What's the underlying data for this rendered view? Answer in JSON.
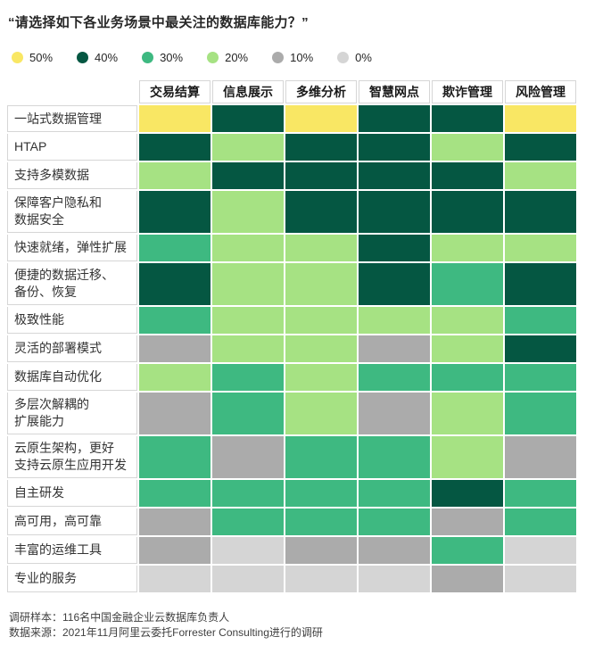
{
  "title": "“请选择如下各业务场景中最关注的数据库能力？”",
  "legend": {
    "items": [
      {
        "label": "50%",
        "color": "#F9E764"
      },
      {
        "label": "40%",
        "color": "#055742"
      },
      {
        "label": "30%",
        "color": "#3EB981"
      },
      {
        "label": "20%",
        "color": "#A6E283"
      },
      {
        "label": "10%",
        "color": "#ABABAB"
      },
      {
        "label": "0%",
        "color": "#D5D5D5"
      }
    ]
  },
  "chart_data": {
    "type": "heatmap",
    "title": "请选择如下各业务场景中最关注的数据库能力？",
    "legend_position": "top",
    "value_unit": "percent",
    "palette": {
      "50": "#F9E764",
      "40": "#055742",
      "30": "#3EB981",
      "20": "#A6E283",
      "10": "#ABABAB",
      "0": "#D5D5D5"
    },
    "columns": [
      "交易结算",
      "信息展示",
      "多维分析",
      "智慧网点",
      "欺诈管理",
      "风险管理"
    ],
    "rows": [
      {
        "label": "一站式数据管理",
        "values_percent": [
          50,
          40,
          50,
          40,
          40,
          50
        ]
      },
      {
        "label": "HTAP",
        "values_percent": [
          40,
          20,
          40,
          40,
          20,
          40
        ]
      },
      {
        "label": "支持多模数据",
        "values_percent": [
          20,
          40,
          40,
          40,
          40,
          20
        ]
      },
      {
        "label": "保障客户隐私和\n数据安全",
        "values_percent": [
          40,
          20,
          40,
          40,
          40,
          40
        ]
      },
      {
        "label": "快速就绪，弹性扩展",
        "values_percent": [
          30,
          20,
          20,
          40,
          20,
          20
        ]
      },
      {
        "label": "便捷的数据迁移、\n备份、恢复",
        "values_percent": [
          40,
          20,
          20,
          40,
          30,
          40
        ]
      },
      {
        "label": "极致性能",
        "values_percent": [
          30,
          20,
          20,
          20,
          20,
          30
        ]
      },
      {
        "label": "灵活的部署模式",
        "values_percent": [
          10,
          20,
          20,
          10,
          20,
          40
        ]
      },
      {
        "label": "数据库自动优化",
        "values_percent": [
          20,
          30,
          20,
          30,
          30,
          30
        ]
      },
      {
        "label": "多层次解耦的\n扩展能力",
        "values_percent": [
          10,
          30,
          20,
          10,
          20,
          30
        ]
      },
      {
        "label": "云原生架构，更好\n支持云原生应用开发",
        "values_percent": [
          30,
          10,
          30,
          30,
          20,
          10
        ]
      },
      {
        "label": "自主研发",
        "values_percent": [
          30,
          30,
          30,
          30,
          40,
          30
        ]
      },
      {
        "label": "高可用，高可靠",
        "values_percent": [
          10,
          30,
          30,
          30,
          10,
          30
        ]
      },
      {
        "label": "丰富的运维工具",
        "values_percent": [
          10,
          0,
          10,
          10,
          30,
          0
        ]
      },
      {
        "label": "专业的服务",
        "values_percent": [
          0,
          0,
          0,
          0,
          10,
          0
        ]
      }
    ]
  },
  "footer": {
    "line1": "调研样本：116名中国金融企业云数据库负责人",
    "line2": "数据来源：2021年11月阿里云委托Forrester Consulting进行的调研"
  }
}
